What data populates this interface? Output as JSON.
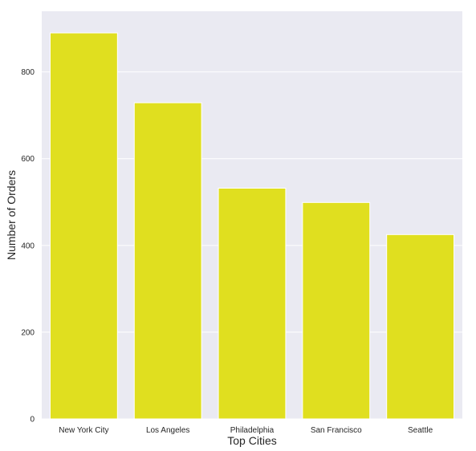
{
  "chart_data": {
    "type": "bar",
    "title": "",
    "xlabel": "Top Cities",
    "ylabel": "Number of Orders",
    "categories": [
      "New York City",
      "Los Angeles",
      "Philadelphia",
      "San Francisco",
      "Seattle"
    ],
    "values": [
      890,
      729,
      532,
      499,
      425
    ],
    "ylim": [
      0,
      940
    ],
    "yticks": [
      0,
      200,
      400,
      600,
      800
    ],
    "ytick_labels": [
      "0",
      "200",
      "400",
      "600",
      "800"
    ],
    "grid": true,
    "legend": "none",
    "colors": {
      "bar": "#e0df1f",
      "background": "#eaeaf2",
      "grid": "#ffffff",
      "text": "#262626"
    }
  }
}
